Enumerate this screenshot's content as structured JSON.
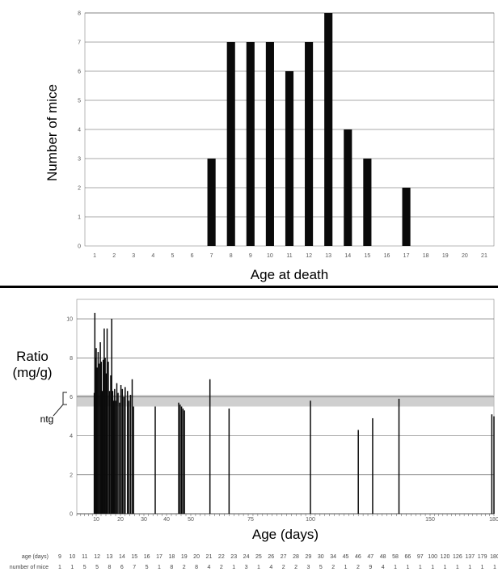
{
  "chart_data": [
    {
      "type": "bar",
      "xlabel": "Age at death",
      "ylabel": "Number of mice",
      "ylim": [
        0,
        8
      ],
      "yticks": [
        0,
        1,
        2,
        3,
        4,
        5,
        6,
        7,
        8
      ],
      "grid": true,
      "categories": [
        "1",
        "2",
        "3",
        "4",
        "5",
        "6",
        "7",
        "8",
        "9",
        "10",
        "11",
        "12",
        "13",
        "14",
        "15",
        "16",
        "17",
        "18",
        "19",
        "20",
        "21"
      ],
      "values": [
        0,
        0,
        0,
        0,
        0,
        0,
        3,
        7,
        7,
        7,
        6,
        7,
        8,
        4,
        3,
        0,
        2,
        0,
        0,
        0,
        0
      ]
    },
    {
      "type": "bar",
      "xlabel": "Age (days)",
      "ylabel": "Ratio\n(mg/g)",
      "ylim": [
        0,
        11
      ],
      "yticks": [
        0,
        2,
        4,
        6,
        8,
        10
      ],
      "xlim": [
        0,
        180
      ],
      "xticks": [
        10,
        20,
        30,
        40,
        50,
        75,
        100,
        150,
        180
      ],
      "grid": true,
      "band": {
        "label": "ntg",
        "low": 5.5,
        "high": 6.1
      },
      "points": [
        [
          9,
          6.2
        ],
        [
          9.3,
          10.3
        ],
        [
          9.6,
          8.0
        ],
        [
          10,
          8.5
        ],
        [
          10.4,
          7.5
        ],
        [
          10.8,
          8.3
        ],
        [
          11.3,
          7.7
        ],
        [
          11.7,
          8.8
        ],
        [
          12.1,
          7.8
        ],
        [
          12.5,
          6.3
        ],
        [
          12.9,
          7.9
        ],
        [
          13.3,
          9.5
        ],
        [
          13.7,
          8.0
        ],
        [
          14.1,
          7.2
        ],
        [
          14.5,
          9.5
        ],
        [
          15,
          7.8
        ],
        [
          15.5,
          6.3
        ],
        [
          16,
          7.1
        ],
        [
          16.4,
          10.0
        ],
        [
          16.8,
          6.3
        ],
        [
          17.2,
          5.8
        ],
        [
          17.6,
          6.4
        ],
        [
          18,
          5.8
        ],
        [
          18.5,
          6.7
        ],
        [
          19,
          6.2
        ],
        [
          19.6,
          5.7
        ],
        [
          20.2,
          6.6
        ],
        [
          20.8,
          6.4
        ],
        [
          21.4,
          6.0
        ],
        [
          22,
          6.5
        ],
        [
          23,
          6.3
        ],
        [
          23.6,
          5.8
        ],
        [
          24.3,
          6.1
        ],
        [
          25,
          6.9
        ],
        [
          25.6,
          5.5
        ],
        [
          35,
          5.5
        ],
        [
          45,
          5.7
        ],
        [
          45.6,
          5.6
        ],
        [
          46.2,
          5.5
        ],
        [
          46.8,
          5.4
        ],
        [
          47.4,
          5.3
        ],
        [
          58,
          6.9
        ],
        [
          66,
          5.4
        ],
        [
          100,
          5.8
        ],
        [
          120,
          4.3
        ],
        [
          126,
          4.9
        ],
        [
          137,
          5.9
        ],
        [
          179,
          5.1
        ],
        [
          180,
          5.0
        ]
      ]
    }
  ],
  "table": {
    "age_label": "age (days)",
    "mice_label": "number of mice",
    "ages": [
      "9",
      "10",
      "11",
      "12",
      "13",
      "14",
      "15",
      "16",
      "17",
      "18",
      "19",
      "20",
      "21",
      "22",
      "23",
      "24",
      "25",
      "26",
      "27",
      "28",
      "29",
      "30",
      "34",
      "45",
      "46",
      "47",
      "48",
      "58",
      "66",
      "97",
      "100",
      "120",
      "126",
      "137",
      "179",
      "180"
    ],
    "mice": [
      "1",
      "1",
      "5",
      "5",
      "8",
      "6",
      "7",
      "5",
      "1",
      "8",
      "2",
      "8",
      "4",
      "2",
      "1",
      "3",
      "1",
      "4",
      "2",
      "2",
      "3",
      "5",
      "2",
      "1",
      "2",
      "9",
      "4",
      "1",
      "1",
      "1",
      "1",
      "1",
      "1",
      "1",
      "1",
      "1"
    ]
  },
  "colors": {
    "bar": "#0a0a0a",
    "grid": "#555555",
    "band": "#bfbfbf"
  }
}
